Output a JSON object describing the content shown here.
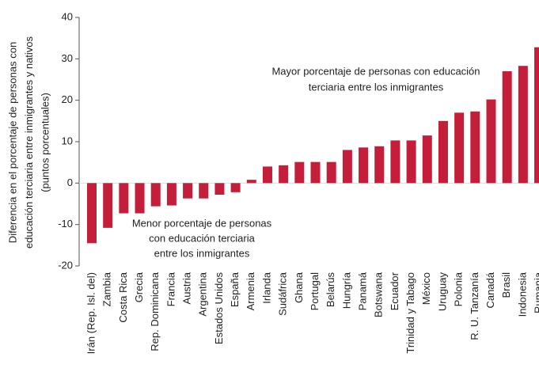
{
  "chart_data": {
    "type": "bar",
    "ylabel": [
      "Diferencia en el porcentaje de personas con",
      "educación terciaria entre inmigrantes y nativos",
      "(puntos porcentuales)"
    ],
    "categories": [
      "Irán (Rep. Isl. del)",
      "Zambia",
      "Costa Rica",
      "Grecia",
      "Rep. Dominicana",
      "Francia",
      "Austria",
      "Argentina",
      "Estados Unidos",
      "España",
      "Armenia",
      "Irlanda",
      "Sudáfrica",
      "Ghana",
      "Portugal",
      "Belarús",
      "Hungría",
      "Panamá",
      "Botswana",
      "Ecuador",
      "Trinidad y Tabago",
      "México",
      "Uruguay",
      "Polonia",
      "R. U. Tanzanía",
      "Canadá",
      "Brasil",
      "Indonesia",
      "Rumania"
    ],
    "values": [
      -14.5,
      -10.8,
      -7.3,
      -7.3,
      -5.6,
      -5.4,
      -3.7,
      -3.7,
      -2.8,
      -2.2,
      0.8,
      4,
      4.3,
      5.1,
      5.1,
      5.1,
      8,
      8.6,
      8.9,
      10.3,
      10.3,
      11.5,
      15,
      17,
      17.3,
      20.2,
      27,
      28.3,
      32.8
    ],
    "color": "#c41e3a",
    "ylim": [
      -20,
      40
    ],
    "yticks": [
      -20,
      -10,
      0,
      10,
      20,
      30,
      40
    ],
    "annotations": [
      {
        "lines": [
          "Mayor porcentaje de personas con educación",
          "terciaria entre los inmigrantes"
        ]
      },
      {
        "lines": [
          "Menor porcentaje de personas",
          "con educación terciaria",
          "entre los inmigrantes"
        ]
      }
    ]
  }
}
